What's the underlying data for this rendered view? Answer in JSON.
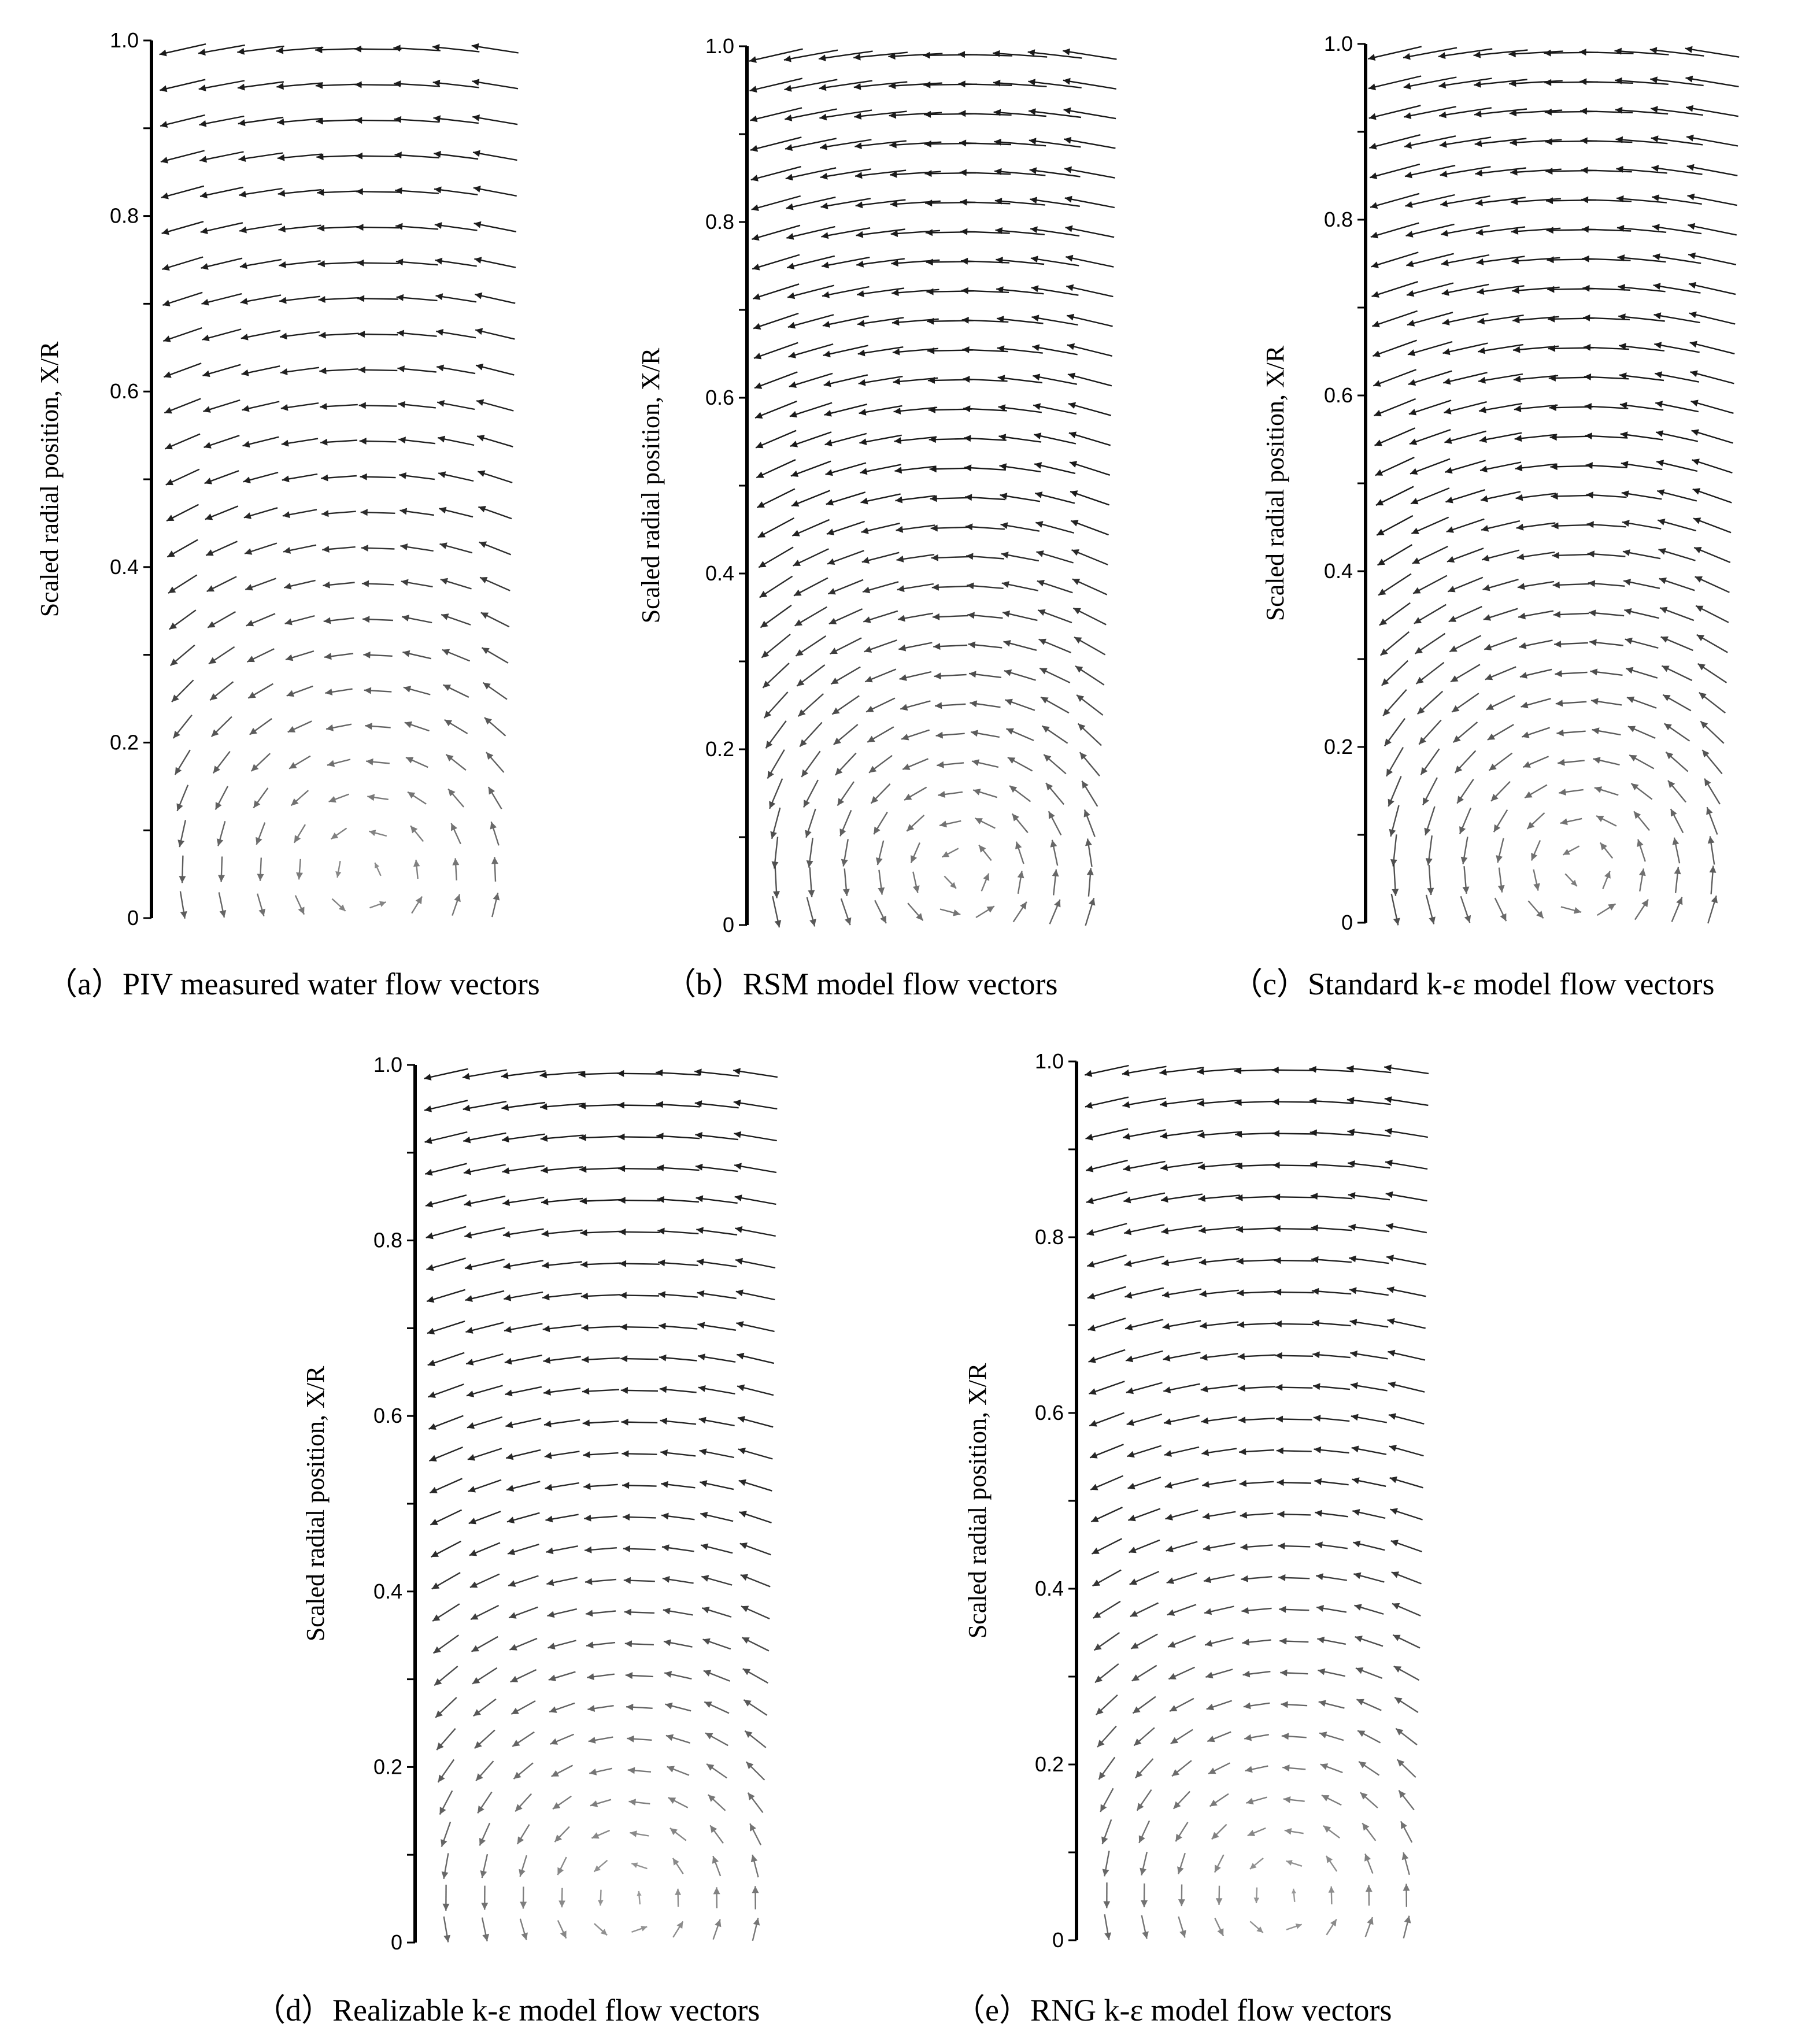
{
  "figure": {
    "colors": {
      "ink": "#000000",
      "vector": "#1a1a1a",
      "background": "#ffffff"
    }
  },
  "chart_data": [
    {
      "id": "a",
      "type": "vector-field",
      "caption": "（a）PIV measured water flow vectors",
      "ylabel": "Scaled radial position, X/R",
      "ylim": [
        0,
        1.0
      ],
      "yticks": [
        "0",
        "0.2",
        "0.4",
        "0.6",
        "0.8",
        "1.0"
      ],
      "field": {
        "vortex_center": 0.05,
        "arrow_scale": 0.95,
        "rows": 25,
        "cols": 9,
        "edge_soft": 0.3
      }
    },
    {
      "id": "b",
      "type": "vector-field",
      "caption": "（b）RSM model flow vectors",
      "ylabel": "Scaled radial position, X/R",
      "ylim": [
        0,
        1.0
      ],
      "yticks": [
        "0",
        "0.2",
        "0.4",
        "0.6",
        "0.8",
        "1.0"
      ],
      "field": {
        "vortex_center": 0.06,
        "arrow_scale": 1.1,
        "rows": 30,
        "cols": 10,
        "edge_soft": 0.0
      }
    },
    {
      "id": "c",
      "type": "vector-field",
      "caption": "（c）Standard k-ε model flow vectors",
      "ylabel": "Scaled radial position, X/R",
      "ylim": [
        0,
        1.0
      ],
      "yticks": [
        "0",
        "0.2",
        "0.4",
        "0.6",
        "0.8",
        "1.0"
      ],
      "field": {
        "vortex_center": 0.06,
        "arrow_scale": 1.1,
        "rows": 30,
        "cols": 10,
        "edge_soft": 0.0
      }
    },
    {
      "id": "d",
      "type": "vector-field",
      "caption": "（d）Realizable k-ε model flow vectors",
      "ylabel": "Scaled radial position, X/R",
      "ylim": [
        0,
        1.0
      ],
      "yticks": [
        "0",
        "0.2",
        "0.4",
        "0.6",
        "0.8",
        "1.0"
      ],
      "field": {
        "vortex_center": 0.05,
        "arrow_scale": 0.9,
        "rows": 28,
        "cols": 9,
        "edge_soft": 0.6
      }
    },
    {
      "id": "e",
      "type": "vector-field",
      "caption": "（e）RNG k-ε model flow vectors",
      "ylabel": "Scaled radial position, X/R",
      "ylim": [
        0,
        1.0
      ],
      "yticks": [
        "0",
        "0.2",
        "0.4",
        "0.6",
        "0.8",
        "1.0"
      ],
      "field": {
        "vortex_center": 0.05,
        "arrow_scale": 0.9,
        "rows": 28,
        "cols": 9,
        "edge_soft": 0.6
      }
    }
  ]
}
